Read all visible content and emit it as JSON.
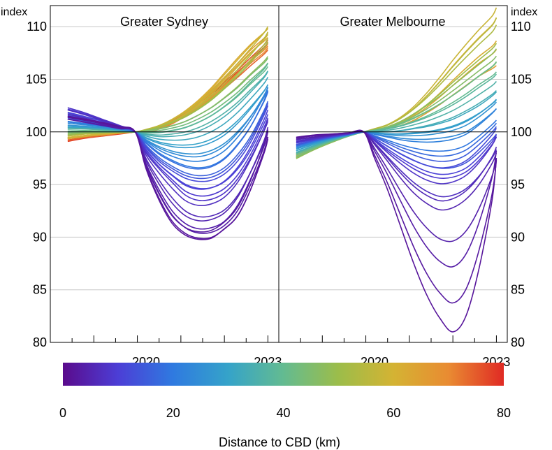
{
  "chart_data": {
    "type": "line",
    "y_unit_left": "index",
    "y_unit_right": "index",
    "ylim": [
      80,
      112
    ],
    "yticks": [
      80,
      85,
      90,
      95,
      100,
      105,
      110
    ],
    "xlim": [
      2018.0,
      2023.25
    ],
    "xtick_labels": [
      "2020",
      "2023"
    ],
    "grid": "horizontal",
    "reference_line": 100,
    "panels": [
      {
        "title": "Greater Sydney",
        "series_description": "one line per suburb, colored by distance to CBD",
        "x": [
          2018.4,
          2018.8,
          2019.2,
          2019.6,
          2019.95,
          2020.2,
          2020.5,
          2020.8,
          2021.1,
          2021.4,
          2021.7,
          2022.0,
          2022.3,
          2022.6,
          2022.9,
          2023.0
        ],
        "representative_series": [
          {
            "distance_km": 2,
            "values": [
              101.5,
              101.2,
              100.9,
              100.5,
              100,
              96.5,
              93.5,
              91.3,
              90.2,
              89.8,
              89.9,
              90.8,
              92.0,
              94.5,
              98.0,
              99.5
            ]
          },
          {
            "distance_km": 4,
            "values": [
              101.2,
              100.9,
              100.6,
              100.3,
              100,
              97.0,
              94.5,
              92.5,
              91.3,
              90.8,
              90.9,
              91.5,
              93.0,
              95.5,
              98.5,
              100.0
            ]
          },
          {
            "distance_km": 8,
            "values": [
              102.3,
              101.8,
              101.2,
              100.6,
              100,
              98.0,
              96.5,
              95.2,
              94.0,
              93.5,
              93.6,
              94.2,
              95.5,
              97.5,
              100.0,
              101.0
            ]
          },
          {
            "distance_km": 12,
            "values": [
              101.8,
              101.4,
              101.0,
              100.5,
              100,
              98.5,
              97.2,
              96.3,
              95.6,
              95.3,
              95.4,
              96.0,
              97.2,
              99.0,
              101.5,
              102.5
            ]
          },
          {
            "distance_km": 20,
            "values": [
              101.0,
              100.8,
              100.6,
              100.3,
              100,
              99.0,
              98.0,
              97.3,
              96.8,
              96.6,
              96.8,
              97.5,
              98.8,
              100.5,
              102.8,
              103.8
            ]
          },
          {
            "distance_km": 28,
            "values": [
              100.6,
              100.5,
              100.4,
              100.2,
              100,
              99.4,
              98.9,
              98.6,
              98.5,
              98.6,
              99.0,
              99.7,
              100.8,
              102.2,
              103.8,
              104.5
            ]
          },
          {
            "distance_km": 36,
            "values": [
              100.3,
              100.3,
              100.2,
              100.1,
              100,
              99.8,
              99.7,
              99.8,
              100.0,
              100.4,
              101.0,
              101.8,
              102.8,
              104.0,
              105.2,
              105.8
            ]
          },
          {
            "distance_km": 45,
            "values": [
              99.9,
              100.0,
              100.0,
              100.0,
              100,
              100.1,
              100.3,
              100.6,
              101.0,
              101.6,
              102.3,
              103.2,
              104.2,
              105.4,
              106.5,
              107.0
            ]
          },
          {
            "distance_km": 55,
            "values": [
              99.6,
              99.8,
              99.9,
              100.0,
              100,
              100.2,
              100.5,
              101.0,
              101.6,
              102.4,
              103.4,
              104.6,
              105.9,
              107.3,
              108.8,
              109.5
            ]
          },
          {
            "distance_km": 62,
            "values": [
              99.4,
              99.6,
              99.8,
              99.9,
              100,
              100.2,
              100.6,
              101.2,
              102.0,
              103.0,
              104.2,
              105.6,
              107.0,
              108.3,
              109.4,
              109.8
            ]
          },
          {
            "distance_km": 70,
            "values": [
              99.4,
              99.6,
              99.7,
              99.9,
              100,
              100.0,
              100.3,
              100.8,
              101.5,
              102.3,
              103.2,
              104.2,
              105.3,
              106.5,
              107.5,
              108.0
            ]
          },
          {
            "distance_km": 78,
            "values": [
              99.1,
              99.4,
              99.6,
              99.8,
              100,
              100.1,
              100.4,
              101.0,
              101.8,
              102.7,
              103.6,
              104.6,
              105.7,
              106.8,
              108.0,
              108.5
            ]
          }
        ]
      },
      {
        "title": "Greater Melbourne",
        "series_description": "one line per suburb, colored by distance to CBD",
        "x": [
          2018.4,
          2018.8,
          2019.2,
          2019.6,
          2019.95,
          2020.2,
          2020.5,
          2020.8,
          2021.1,
          2021.4,
          2021.7,
          2022.0,
          2022.3,
          2022.6,
          2022.9,
          2023.0
        ],
        "representative_series": [
          {
            "distance_km": 2,
            "values": [
              99.5,
              99.7,
              99.8,
              99.9,
              100,
              97.5,
              94.5,
              91.0,
              87.5,
              84.5,
              82.3,
              81.0,
              82.5,
              87.0,
              93.5,
              97.5
            ]
          },
          {
            "distance_km": 5,
            "values": [
              99.3,
              99.5,
              99.7,
              99.9,
              100,
              98.8,
              97.2,
              95.6,
              94.2,
              93.2,
              92.6,
              92.8,
              93.6,
              95.0,
              97.0,
              98.0
            ]
          },
          {
            "distance_km": 9,
            "values": [
              99.0,
              99.3,
              99.6,
              99.8,
              100,
              99.2,
              98.2,
              97.3,
              96.5,
              95.9,
              95.6,
              95.7,
              96.2,
              97.3,
              98.8,
              99.5
            ]
          },
          {
            "distance_km": 15,
            "values": [
              98.8,
              99.2,
              99.5,
              99.8,
              100,
              99.5,
              98.9,
              98.3,
              97.8,
              97.4,
              97.2,
              97.3,
              97.8,
              98.8,
              100.0,
              100.5
            ]
          },
          {
            "distance_km": 24,
            "values": [
              98.5,
              99.0,
              99.4,
              99.7,
              100,
              99.8,
              99.6,
              99.4,
              99.3,
              99.3,
              99.4,
              99.6,
              100.0,
              100.8,
              101.8,
              102.2
            ]
          },
          {
            "distance_km": 32,
            "values": [
              98.2,
              98.8,
              99.3,
              99.7,
              100,
              100.0,
              100.0,
              100.1,
              100.3,
              100.5,
              100.8,
              101.2,
              101.8,
              102.5,
              103.4,
              103.8
            ]
          },
          {
            "distance_km": 40,
            "values": [
              97.8,
              98.5,
              99.1,
              99.6,
              100,
              100.1,
              100.3,
              100.6,
              101.0,
              101.5,
              102.1,
              102.8,
              103.6,
              104.5,
              105.3,
              105.7
            ]
          },
          {
            "distance_km": 48,
            "values": [
              97.5,
              98.3,
              99.0,
              99.6,
              100,
              100.2,
              100.5,
              101.0,
              101.7,
              102.5,
              103.4,
              104.4,
              105.4,
              106.4,
              107.4,
              107.9
            ]
          },
          {
            "distance_km": 58,
            "values": [
              97.6,
              98.4,
              99.0,
              99.6,
              100,
              100.3,
              100.7,
              101.4,
              102.4,
              103.7,
              105.2,
              106.8,
              108.3,
              109.7,
              111.0,
              111.8
            ]
          },
          {
            "distance_km": 65,
            "values": [
              97.9,
              98.6,
              99.2,
              99.7,
              100,
              100.1,
              100.3,
              100.6,
              101.1,
              101.8,
              102.6,
              103.5,
              104.4,
              105.3,
              106.0,
              106.3
            ]
          }
        ]
      }
    ],
    "colorbar": {
      "range": [
        0,
        80
      ],
      "ticks": [
        0,
        20,
        40,
        60,
        80
      ],
      "label": "Distance to CBD (km)",
      "colors": [
        "#5a0b8c",
        "#4c3ed6",
        "#2f7ae0",
        "#35a3c9",
        "#63bb91",
        "#9cbd4a",
        "#d4b333",
        "#e98b32",
        "#e02a24"
      ]
    }
  }
}
